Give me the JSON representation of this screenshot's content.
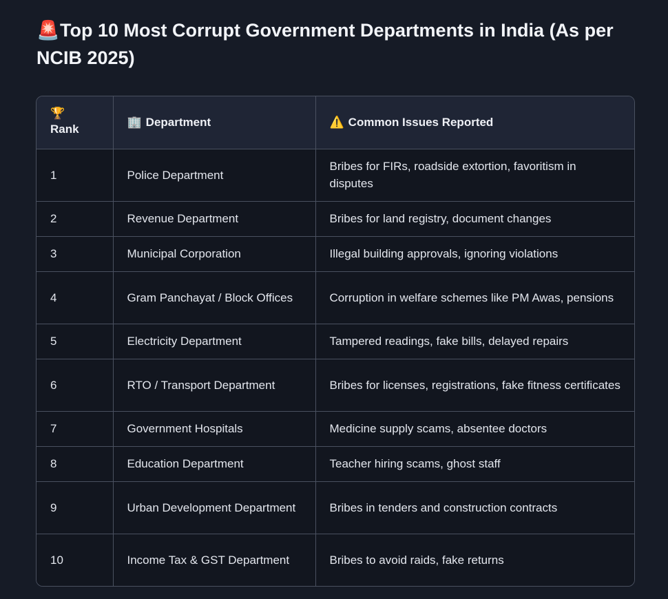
{
  "title": {
    "emoji": "🚨",
    "text": "Top 10 Most Corrupt Government Departments in India (As per NCIB 2025)"
  },
  "table": {
    "headers": [
      {
        "icon": "🏆",
        "label": "Rank"
      },
      {
        "icon": "🏢",
        "label": "Department"
      },
      {
        "icon": "⚠️",
        "label": "Common Issues Reported"
      }
    ],
    "rows": [
      {
        "rank": "1",
        "department": "Police Department",
        "issues": "Bribes for FIRs, roadside extortion, favoritism in disputes"
      },
      {
        "rank": "2",
        "department": "Revenue Department",
        "issues": "Bribes for land registry, document changes"
      },
      {
        "rank": "3",
        "department": "Municipal Corporation",
        "issues": "Illegal building approvals, ignoring violations"
      },
      {
        "rank": "4",
        "department": "Gram Panchayat / Block Offices",
        "issues": "Corruption in welfare schemes like PM Awas, pensions"
      },
      {
        "rank": "5",
        "department": "Electricity Department",
        "issues": "Tampered readings, fake bills, delayed repairs"
      },
      {
        "rank": "6",
        "department": "RTO / Transport Department",
        "issues": "Bribes for licenses, registrations, fake fitness certificates"
      },
      {
        "rank": "7",
        "department": "Government Hospitals",
        "issues": "Medicine supply scams, absentee doctors"
      },
      {
        "rank": "8",
        "department": "Education Department",
        "issues": "Teacher hiring scams, ghost staff"
      },
      {
        "rank": "9",
        "department": "Urban Development Department",
        "issues": "Bribes in tenders and construction contracts"
      },
      {
        "rank": "10",
        "department": "Income Tax & GST Department",
        "issues": "Bribes to avoid raids, fake returns"
      }
    ]
  }
}
